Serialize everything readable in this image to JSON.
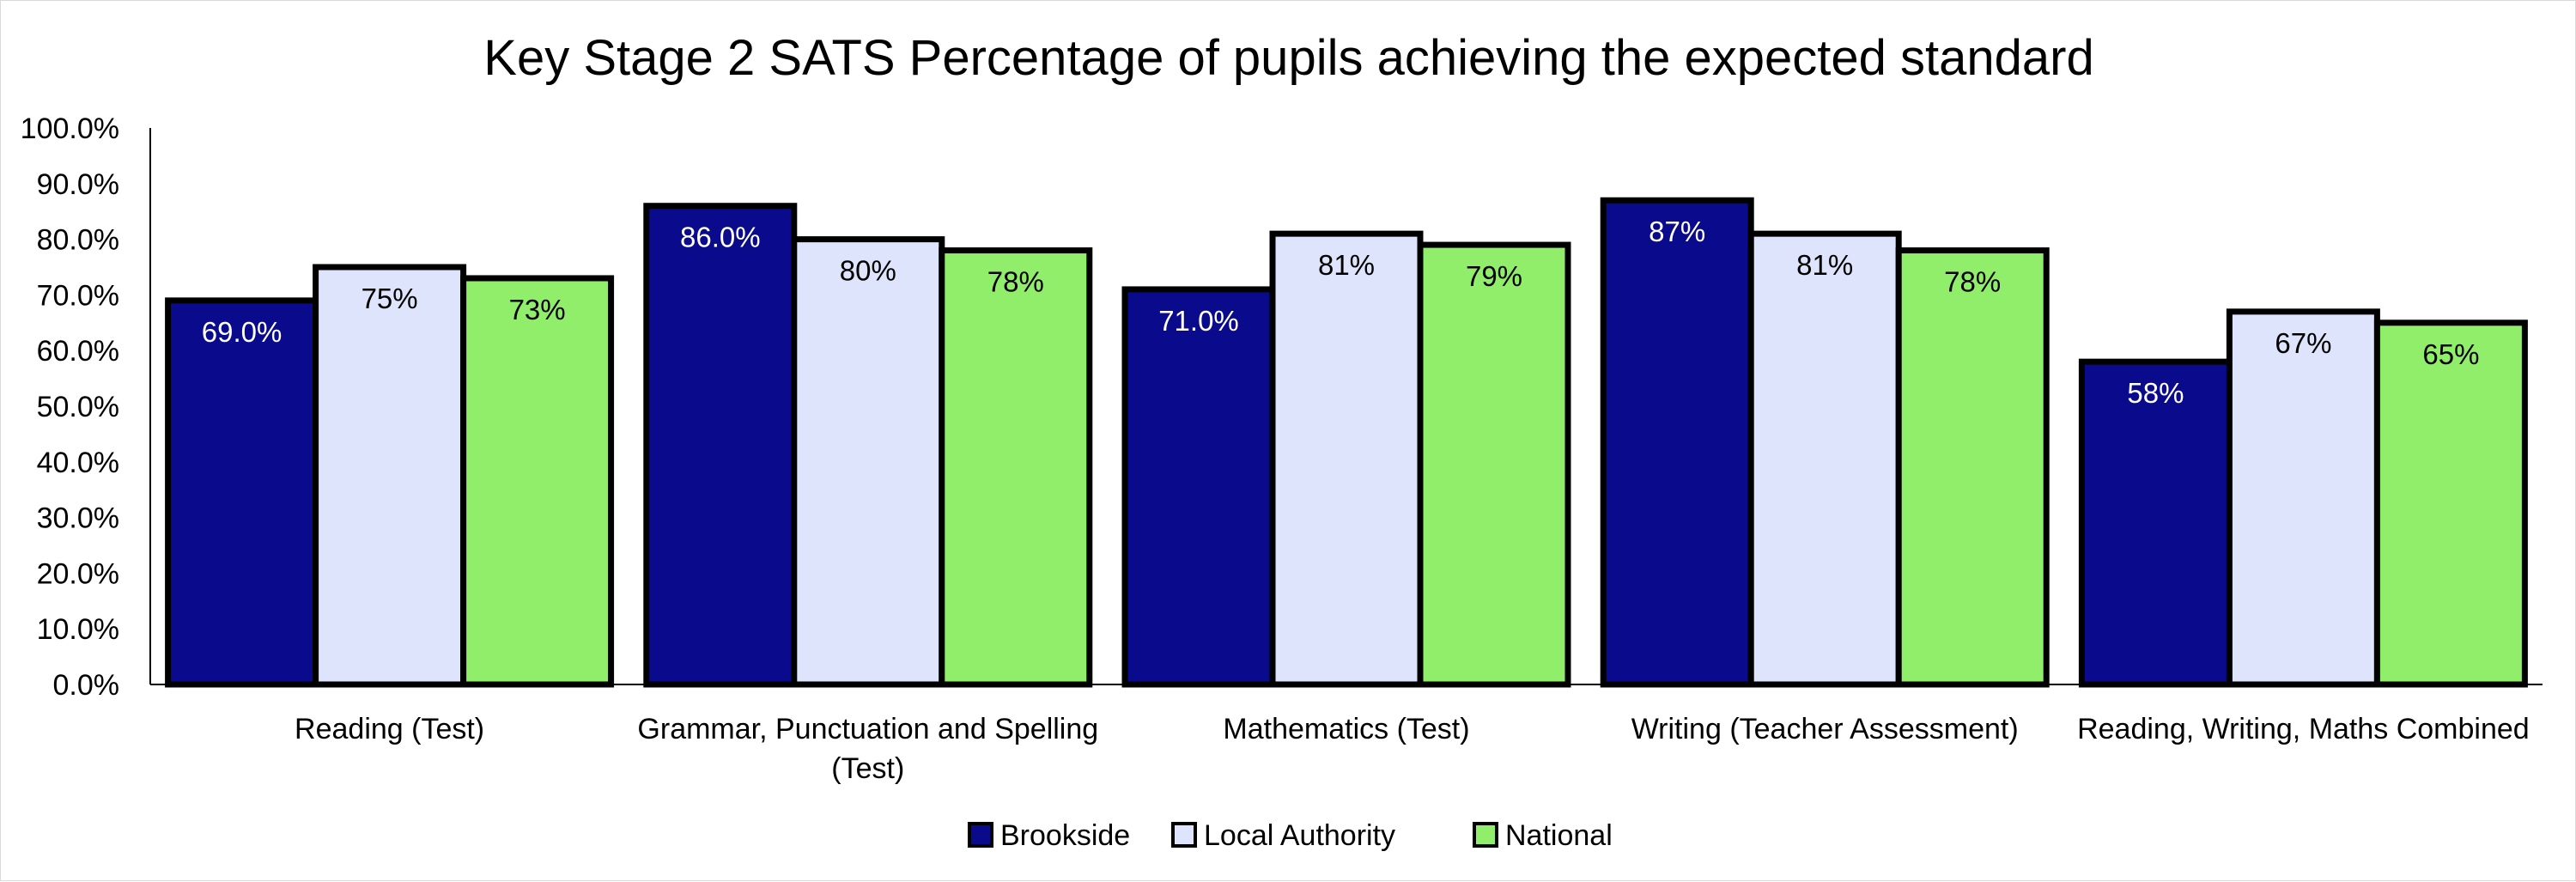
{
  "chart_data": {
    "type": "bar",
    "title": "Key Stage 2 SATS Percentage of pupils achieving the expected standard",
    "categories": [
      [
        "Reading (Test)"
      ],
      [
        "Grammar, Punctuation and Spelling",
        "(Test)"
      ],
      [
        "Mathematics (Test)"
      ],
      [
        "Writing (Teacher Assessment)"
      ],
      [
        "Reading, Writing, Maths Combined"
      ]
    ],
    "series": [
      {
        "name": "Brookside",
        "color": "#0a0a8c",
        "label_color": "#ffffff",
        "values": [
          69,
          86,
          71,
          87,
          58
        ],
        "labels": [
          "69.0%",
          "86.0%",
          "71.0%",
          "87%",
          "58%"
        ]
      },
      {
        "name": "Local Authority",
        "color": "#dde4fb",
        "label_color": "#000000",
        "values": [
          75,
          80,
          81,
          81,
          67
        ],
        "labels": [
          "75%",
          "80%",
          "81%",
          "81%",
          "67%"
        ]
      },
      {
        "name": "National",
        "color": "#90ee6a",
        "label_color": "#000000",
        "values": [
          73,
          78,
          79,
          78,
          65
        ],
        "labels": [
          "73%",
          "78%",
          "79%",
          "78%",
          "65%"
        ]
      }
    ],
    "ylim": [
      0,
      100
    ],
    "yticks": [
      0,
      10,
      20,
      30,
      40,
      50,
      60,
      70,
      80,
      90,
      100
    ],
    "ytick_labels": [
      "0.0%",
      "10.0%",
      "20.0%",
      "30.0%",
      "40.0%",
      "50.0%",
      "60.0%",
      "70.0%",
      "80.0%",
      "90.0%",
      "100.0%"
    ],
    "xlabel": "",
    "ylabel": "",
    "grid": false,
    "legend_position": "bottom"
  }
}
